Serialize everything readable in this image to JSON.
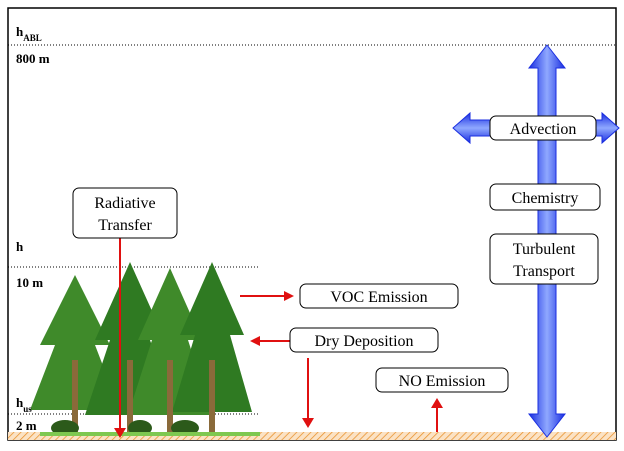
{
  "levels": [
    {
      "label": "h",
      "subscript": "ABL"
    },
    {
      "label": "800 m"
    },
    {
      "label": "h"
    },
    {
      "label": "10 m"
    },
    {
      "label": "h",
      "subscript": "us"
    },
    {
      "label": "2 m"
    }
  ],
  "processes": {
    "radiative_transfer": [
      "Radiative",
      "Transfer"
    ],
    "voc_emission": "VOC Emission",
    "dry_deposition": "Dry Deposition",
    "no_emission": "NO Emission",
    "advection": "Advection",
    "chemistry": "Chemistry",
    "turbulent_transport": [
      "Turbulent",
      "Transport"
    ]
  }
}
